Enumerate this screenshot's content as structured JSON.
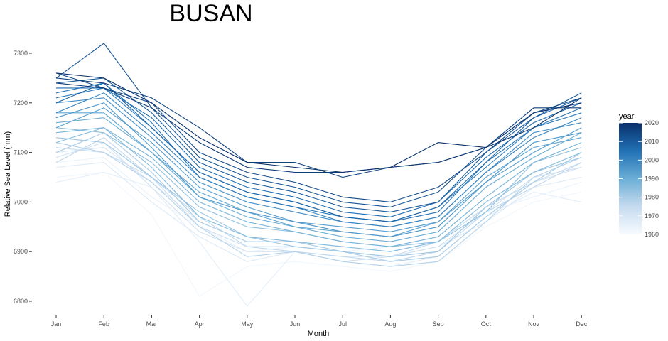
{
  "chart_data": {
    "type": "line",
    "title": "BUSAN",
    "xlabel": "Month",
    "ylabel": "Relative Sea Level (mm)",
    "categories": [
      "Jan",
      "Feb",
      "Mar",
      "Apr",
      "May",
      "Jun",
      "Jul",
      "Aug",
      "Sep",
      "Oct",
      "Nov",
      "Dec"
    ],
    "yticks": [
      6800,
      6900,
      7000,
      7100,
      7200,
      7300
    ],
    "ylim": [
      6775,
      7330
    ],
    "grid": false,
    "legend": {
      "title": "year",
      "type": "colorbar",
      "placement": "right",
      "range": [
        1960,
        2020
      ],
      "ticks": [
        1960,
        1970,
        1980,
        1990,
        2000,
        2010,
        2020
      ],
      "color_low": "#f7fbff",
      "color_high": "#08306b"
    },
    "series": [
      {
        "year": 1962,
        "values": [
          7050,
          7060,
          6975,
          6810,
          6870,
          6880,
          6870,
          6860,
          6880,
          6950,
          7000,
          7020
        ]
      },
      {
        "year": 1964,
        "values": [
          7080,
          7090,
          7010,
          6950,
          6900,
          6910,
          6900,
          6910,
          6920,
          6980,
          7010,
          7040
        ]
      },
      {
        "year": 1966,
        "values": [
          7040,
          7060,
          7030,
          6920,
          6790,
          6900,
          6880,
          6870,
          6890,
          6970,
          7020,
          7000
        ]
      },
      {
        "year": 1968,
        "values": [
          7070,
          7080,
          7000,
          6930,
          6880,
          6900,
          6890,
          6890,
          6910,
          6960,
          7030,
          7050
        ]
      },
      {
        "year": 1970,
        "values": [
          7100,
          7110,
          7040,
          6960,
          6920,
          6920,
          6910,
          6900,
          6920,
          6990,
          7040,
          7070
        ]
      },
      {
        "year": 1972,
        "values": [
          7090,
          7120,
          7030,
          6940,
          6900,
          6900,
          6880,
          6890,
          6910,
          6980,
          7050,
          7070
        ]
      },
      {
        "year": 1974,
        "values": [
          7110,
          7100,
          7050,
          6950,
          6910,
          6910,
          6900,
          6890,
          6920,
          6990,
          7040,
          7080
        ]
      },
      {
        "year": 1976,
        "values": [
          7080,
          7130,
          7050,
          6970,
          6910,
          6900,
          6890,
          6880,
          6900,
          6980,
          7030,
          7080
        ]
      },
      {
        "year": 1978,
        "values": [
          7120,
          7100,
          7040,
          6950,
          6890,
          6900,
          6880,
          6870,
          6880,
          6960,
          7050,
          7090
        ]
      },
      {
        "year": 1980,
        "values": [
          7100,
          7140,
          7060,
          6960,
          6920,
          6920,
          6900,
          6880,
          6890,
          6970,
          7040,
          7100
        ]
      },
      {
        "year": 1982,
        "values": [
          7130,
          7120,
          7050,
          6980,
          6930,
          6910,
          6900,
          6890,
          6900,
          6990,
          7060,
          7090
        ]
      },
      {
        "year": 1984,
        "values": [
          7150,
          7140,
          7080,
          6990,
          6950,
          6940,
          6920,
          6910,
          6920,
          6980,
          7080,
          7110
        ]
      },
      {
        "year": 1986,
        "values": [
          7120,
          7150,
          7070,
          6970,
          6930,
          6920,
          6910,
          6900,
          6920,
          7000,
          7060,
          7100
        ]
      },
      {
        "year": 1988,
        "values": [
          7140,
          7150,
          7090,
          7000,
          6960,
          6940,
          6920,
          6910,
          6930,
          7010,
          7080,
          7120
        ]
      },
      {
        "year": 1990,
        "values": [
          7160,
          7170,
          7100,
          7010,
          6970,
          6950,
          6930,
          6920,
          6940,
          7030,
          7090,
          7140
        ]
      },
      {
        "year": 1992,
        "values": [
          7180,
          7180,
          7100,
          7020,
          6980,
          6950,
          6940,
          6930,
          6960,
          7050,
          7110,
          7130
        ]
      },
      {
        "year": 1994,
        "values": [
          7150,
          7190,
          7120,
          7030,
          6990,
          6960,
          6950,
          6940,
          6960,
          7040,
          7100,
          7150
        ]
      },
      {
        "year": 1996,
        "values": [
          7170,
          7200,
          7110,
          7010,
          6980,
          6960,
          6940,
          6930,
          6950,
          7040,
          7120,
          7140
        ]
      },
      {
        "year": 1998,
        "values": [
          7200,
          7210,
          7130,
          7040,
          7000,
          6980,
          6960,
          6950,
          6970,
          7060,
          7140,
          7160
        ]
      },
      {
        "year": 2000,
        "values": [
          7180,
          7220,
          7140,
          7050,
          7010,
          6990,
          6960,
          6950,
          6970,
          7060,
          7130,
          7170
        ]
      },
      {
        "year": 2002,
        "values": [
          7210,
          7230,
          7150,
          7060,
          7020,
          7000,
          6970,
          6960,
          6990,
          7070,
          7150,
          7180
        ]
      },
      {
        "year": 2004,
        "values": [
          7220,
          7240,
          7160,
          7050,
          7010,
          6990,
          6970,
          6960,
          6980,
          7080,
          7150,
          7190
        ]
      },
      {
        "year": 2006,
        "values": [
          7230,
          7230,
          7170,
          7070,
          7030,
          7010,
          6980,
          6970,
          7000,
          7090,
          7160,
          7200
        ]
      },
      {
        "year": 2008,
        "values": [
          7200,
          7240,
          7150,
          7060,
          7020,
          7000,
          6970,
          6960,
          6990,
          7080,
          7170,
          7210
        ]
      },
      {
        "year": 2010,
        "values": [
          7240,
          7250,
          7180,
          7080,
          7040,
          7020,
          6990,
          6980,
          7000,
          7100,
          7170,
          7220
        ]
      },
      {
        "year": 2012,
        "values": [
          7250,
          7320,
          7190,
          7090,
          7050,
          7030,
          7000,
          6990,
          7020,
          7110,
          7180,
          7200
        ]
      },
      {
        "year": 2014,
        "values": [
          7260,
          7230,
          7200,
          7100,
          7060,
          7040,
          7010,
          7000,
          7030,
          7100,
          7180,
          7210
        ]
      },
      {
        "year": 2016,
        "values": [
          7250,
          7240,
          7210,
          7150,
          7080,
          7080,
          7050,
          7070,
          7080,
          7110,
          7190,
          7190
        ]
      },
      {
        "year": 2018,
        "values": [
          7240,
          7230,
          7190,
          7120,
          7070,
          7060,
          7060,
          7070,
          7080,
          7110,
          7180,
          7200
        ]
      },
      {
        "year": 2020,
        "values": [
          7260,
          7250,
          7200,
          7130,
          7080,
          7070,
          7060,
          7070,
          7120,
          7110,
          7150,
          7210
        ]
      }
    ]
  }
}
